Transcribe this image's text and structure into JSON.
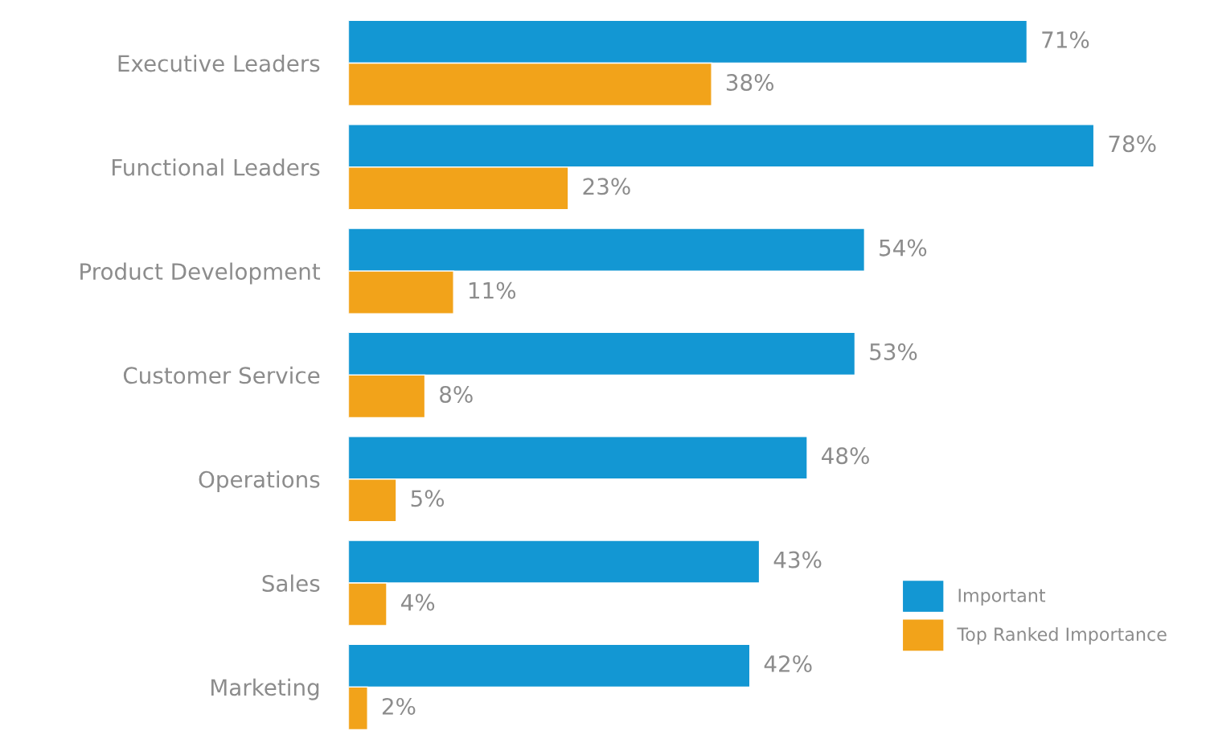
{
  "chart_data": {
    "type": "bar",
    "orientation": "horizontal",
    "categories": [
      "Executive Leaders",
      "Functional Leaders",
      "Product Development",
      "Customer Service",
      "Operations",
      "Sales",
      "Marketing"
    ],
    "series": [
      {
        "name": "Important",
        "color": "#1397d3",
        "values": [
          71,
          78,
          54,
          53,
          48,
          43,
          42
        ],
        "value_labels": [
          "71%",
          "78%",
          "54%",
          "53%",
          "48%",
          "43%",
          "42%"
        ]
      },
      {
        "name": "Top Ranked Importance",
        "color": "#f2a31a",
        "values": [
          38,
          23,
          11,
          8,
          5,
          4,
          2
        ],
        "value_labels": [
          "38%",
          "23%",
          "11%",
          "8%",
          "5%",
          "4%",
          "2%"
        ]
      }
    ],
    "legend": "bottom right",
    "grid": false,
    "tick_labels": "y"
  }
}
